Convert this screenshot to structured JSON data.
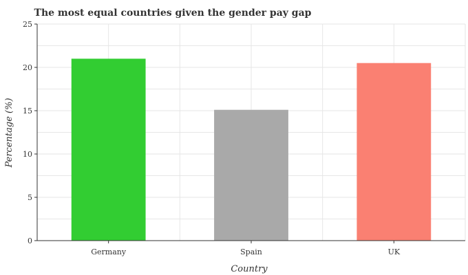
{
  "chart_data": {
    "type": "bar",
    "title": "The most equal countries given the gender pay gap",
    "xlabel": "Country",
    "ylabel": "Percentage (%)",
    "categories": [
      "Germany",
      "Spain",
      "UK"
    ],
    "values": [
      21.0,
      15.1,
      20.5
    ],
    "colors": [
      "#32cd32",
      "#a9a9a9",
      "#fa8072"
    ],
    "ylim": [
      0,
      25
    ],
    "yticks": [
      0,
      5,
      10,
      15,
      20,
      25
    ],
    "grid": true,
    "legend": "none"
  }
}
